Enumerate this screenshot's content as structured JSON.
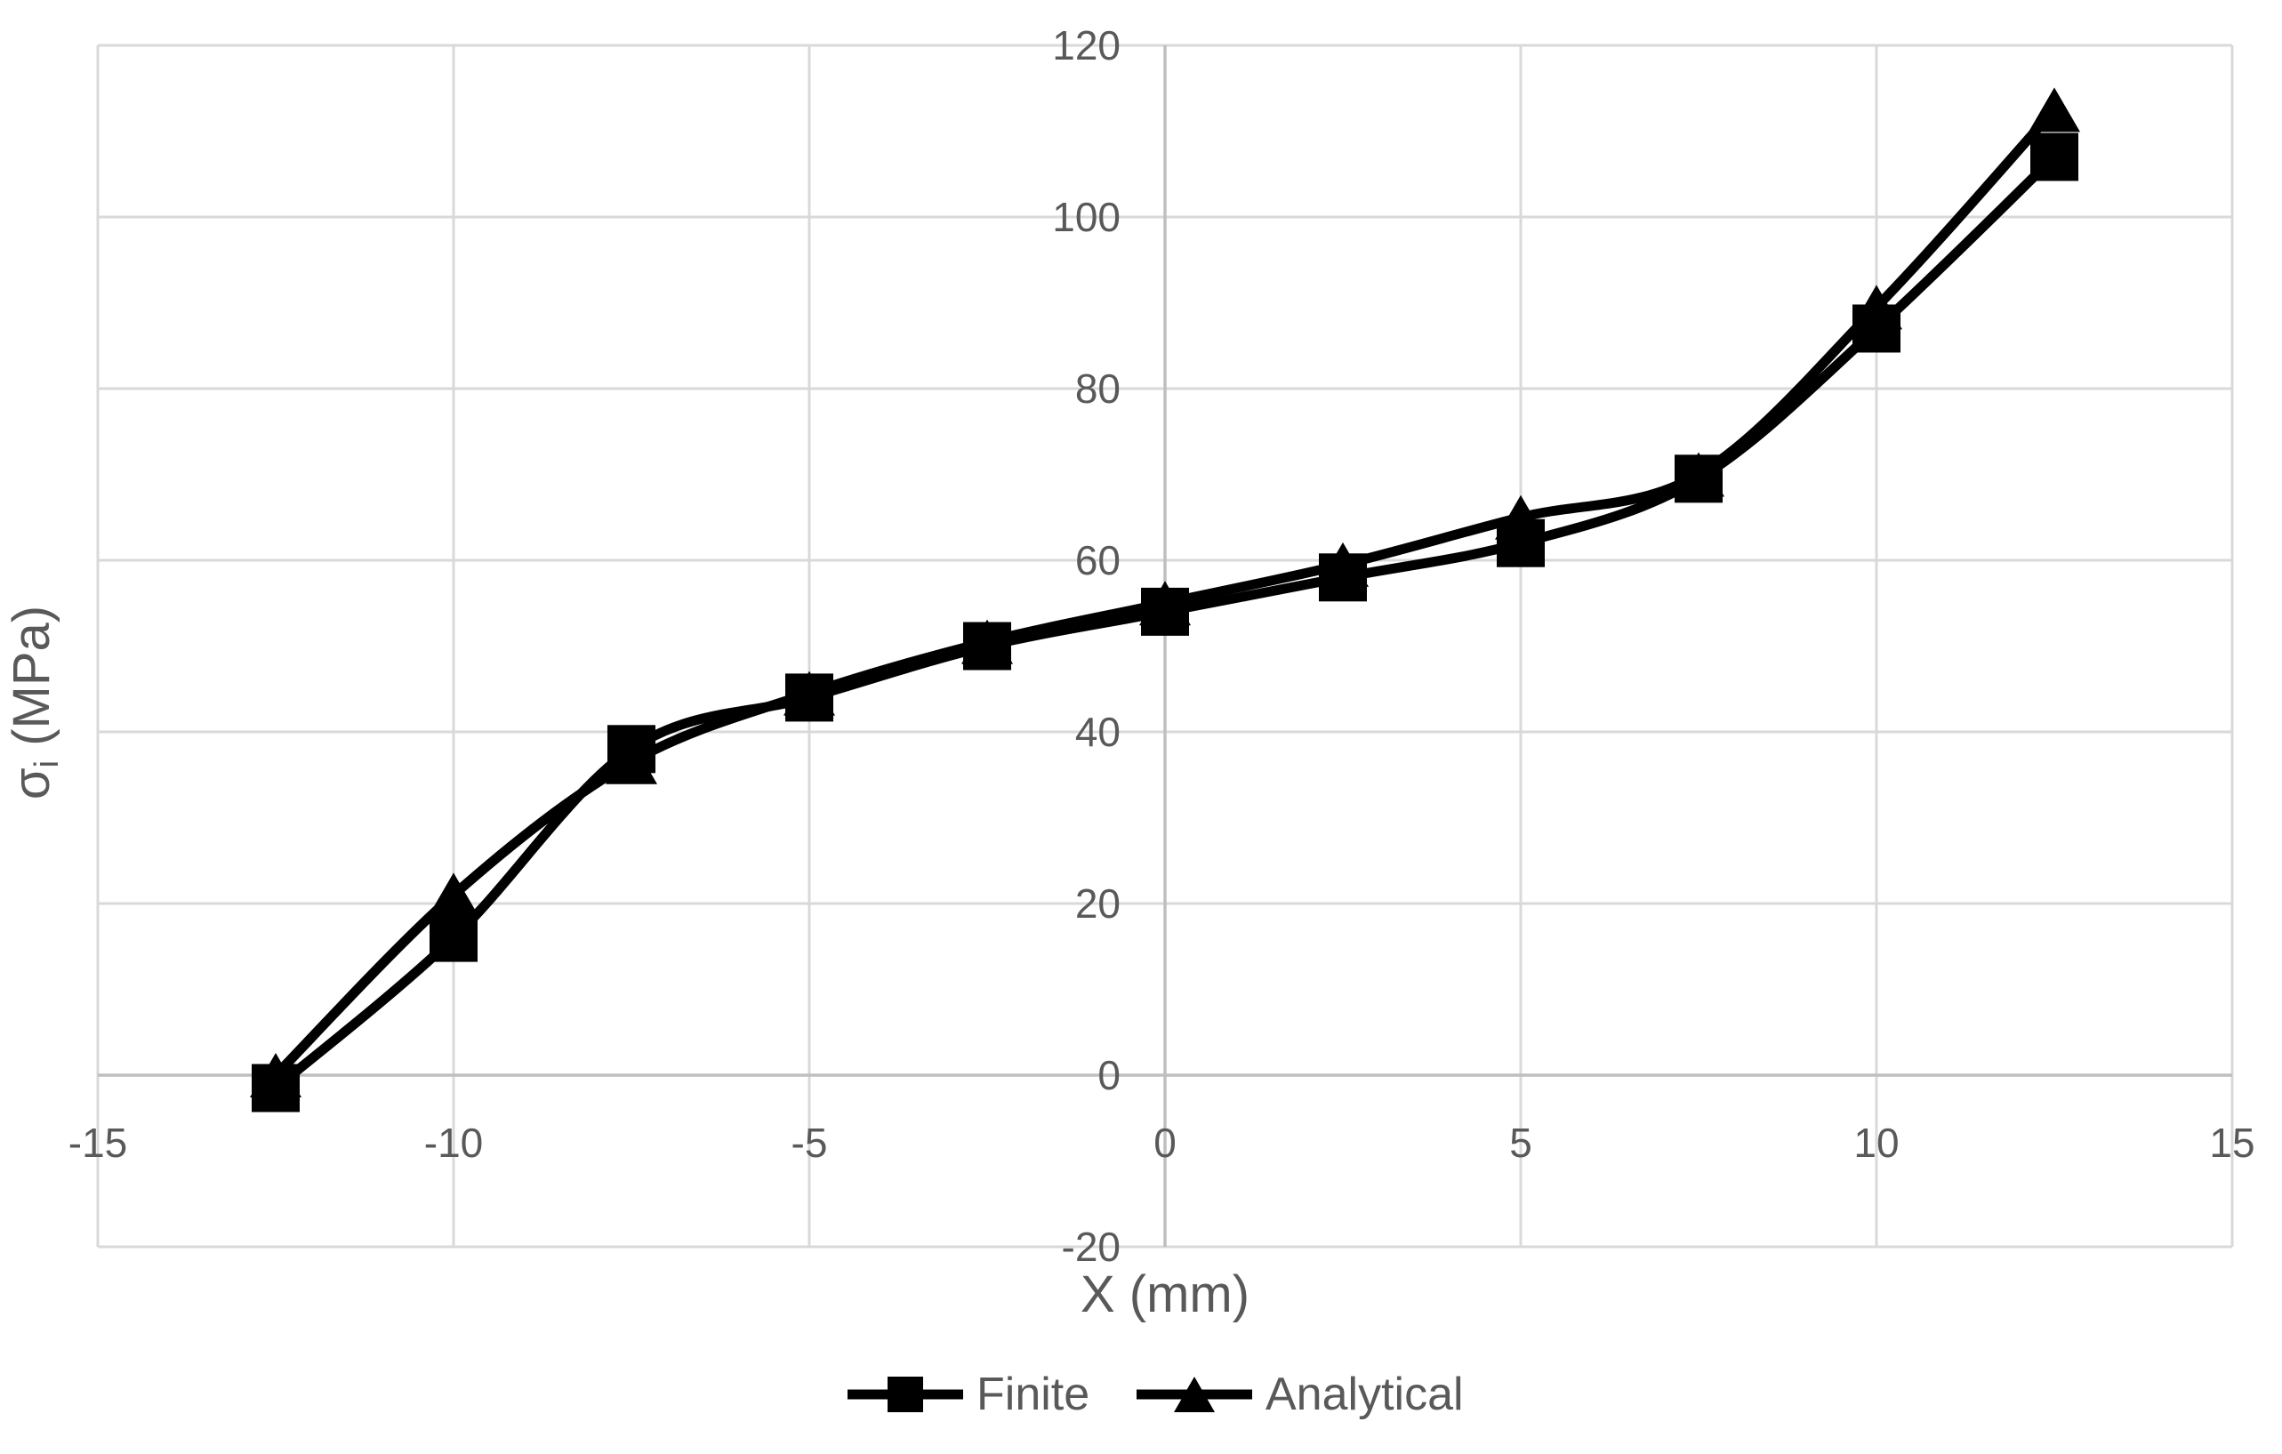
{
  "chart_data": {
    "type": "line",
    "title": "",
    "xlabel": "X (mm)",
    "ylabel": "σi (MPa)",
    "ylabel_parts": {
      "symbol": "σ",
      "subscript": "i",
      "unit": " (MPa)"
    },
    "grid": true,
    "smoothed_lines": true,
    "x_axis": {
      "min": -15,
      "max": 15,
      "step": 5,
      "ticks": [
        {
          "value": -15,
          "label": "-15"
        },
        {
          "value": -10,
          "label": "-10"
        },
        {
          "value": -5,
          "label": "-5"
        },
        {
          "value": 0,
          "label": "0"
        },
        {
          "value": 5,
          "label": "5"
        },
        {
          "value": 10,
          "label": "10"
        },
        {
          "value": 15,
          "label": "15"
        }
      ]
    },
    "y_axis": {
      "min": -20,
      "max": 120,
      "step": 20,
      "ticks": [
        {
          "value": 120,
          "label": "120"
        },
        {
          "value": 100,
          "label": "100"
        },
        {
          "value": 80,
          "label": "80"
        },
        {
          "value": 60,
          "label": "60"
        },
        {
          "value": 40,
          "label": "40"
        },
        {
          "value": 20,
          "label": "20"
        },
        {
          "value": 0,
          "label": "0"
        },
        {
          "value": -20,
          "label": "-20"
        }
      ]
    },
    "x": [
      -12.5,
      -10,
      -7.5,
      -5,
      -2.5,
      0,
      2.5,
      5,
      7.5,
      10,
      12.5
    ],
    "series": [
      {
        "name": "Finite",
        "marker": "square",
        "values": [
          -1.5,
          16,
          38,
          44,
          50,
          54,
          58,
          62,
          69.5,
          87,
          107
        ]
      },
      {
        "name": "Analytical",
        "marker": "triangle",
        "values": [
          0,
          21,
          36.5,
          44.5,
          50.5,
          55,
          59.5,
          65,
          70,
          89.5,
          112.5
        ]
      }
    ],
    "legend": {
      "position": "bottom",
      "items": [
        "Finite",
        "Analytical"
      ]
    },
    "colors": {
      "series": "#000000",
      "gridline": "#D9D9D9",
      "axis_line": "#BFBFBF",
      "text": "#595959",
      "background": "#FFFFFF"
    }
  }
}
